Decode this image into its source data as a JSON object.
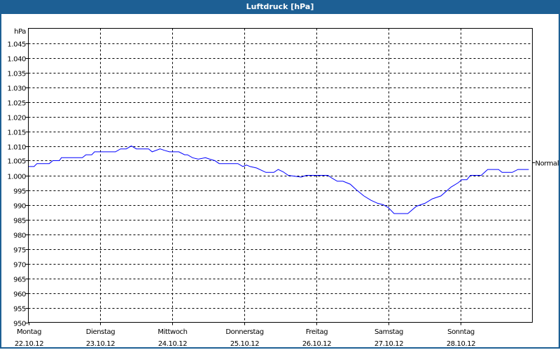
{
  "title": "Luftdruck [hPa]",
  "chart_data": {
    "type": "line",
    "title": "Luftdruck [hPa]",
    "ylabel": "hPa",
    "xlabel": "",
    "ylim": [
      950,
      1050
    ],
    "xlim": [
      0,
      7
    ],
    "yticks": [
      950,
      955,
      960,
      965,
      970,
      975,
      980,
      985,
      990,
      995,
      1000,
      1005,
      1010,
      1015,
      1020,
      1025,
      1030,
      1035,
      1040,
      1045
    ],
    "ytick_labels": [
      "950",
      "955",
      "960",
      "965",
      "970",
      "975",
      "980",
      "985",
      "990",
      "995",
      "1.000",
      "1.005",
      "1.010",
      "1.015",
      "1.020",
      "1.025",
      "1.030",
      "1.035",
      "1.040",
      "1.045"
    ],
    "xticks": [
      {
        "day": "Montag",
        "date": "22.10.12"
      },
      {
        "day": "Dienstag",
        "date": "23.10.12"
      },
      {
        "day": "Mittwoch",
        "date": "24.10.12"
      },
      {
        "day": "Donnerstag",
        "date": "25.10.12"
      },
      {
        "day": "Freitag",
        "date": "26.10.12"
      },
      {
        "day": "Samstag",
        "date": "27.10.12"
      },
      {
        "day": "Sonntag",
        "date": "28.10.12"
      }
    ],
    "grid": true,
    "reference": {
      "label": "Normal",
      "value": 1004.5
    },
    "series": [
      {
        "name": "Luftdruck",
        "color": "#0000ff",
        "points": [
          [
            0,
            1003
          ],
          [
            0.08,
            1003
          ],
          [
            0.12,
            1004
          ],
          [
            0.29,
            1004
          ],
          [
            0.34,
            1005
          ],
          [
            0.43,
            1005
          ],
          [
            0.46,
            1006
          ],
          [
            0.75,
            1006
          ],
          [
            0.8,
            1007
          ],
          [
            0.88,
            1007
          ],
          [
            0.92,
            1008
          ],
          [
            1.21,
            1008
          ],
          [
            1.28,
            1009
          ],
          [
            1.36,
            1009
          ],
          [
            1.43,
            1010
          ],
          [
            1.5,
            1009
          ],
          [
            1.67,
            1009
          ],
          [
            1.72,
            1008
          ],
          [
            1.83,
            1009
          ],
          [
            1.89,
            1008.5
          ],
          [
            1.96,
            1008
          ],
          [
            2.09,
            1008
          ],
          [
            2.17,
            1007
          ],
          [
            2.21,
            1007
          ],
          [
            2.28,
            1006
          ],
          [
            2.36,
            1005.5
          ],
          [
            2.46,
            1006
          ],
          [
            2.52,
            1005.5
          ],
          [
            2.59,
            1005
          ],
          [
            2.65,
            1004
          ],
          [
            2.91,
            1004
          ],
          [
            2.98,
            1003
          ],
          [
            3.03,
            1003.5
          ],
          [
            3.08,
            1003
          ],
          [
            3.17,
            1002.5
          ],
          [
            3.3,
            1001
          ],
          [
            3.41,
            1001
          ],
          [
            3.47,
            1002
          ],
          [
            3.54,
            1001.2
          ],
          [
            3.61,
            1000
          ],
          [
            3.79,
            999.4
          ],
          [
            3.86,
            1000
          ],
          [
            4.16,
            1000
          ],
          [
            4.22,
            999
          ],
          [
            4.29,
            998
          ],
          [
            4.37,
            998
          ],
          [
            4.47,
            997
          ],
          [
            4.56,
            995
          ],
          [
            4.66,
            993
          ],
          [
            4.76,
            991.5
          ],
          [
            4.85,
            990.5
          ],
          [
            4.93,
            990
          ],
          [
            5.0,
            989
          ],
          [
            5.08,
            987
          ],
          [
            5.27,
            987
          ],
          [
            5.39,
            989.5
          ],
          [
            5.51,
            990.5
          ],
          [
            5.61,
            992
          ],
          [
            5.73,
            993
          ],
          [
            5.87,
            996
          ],
          [
            5.97,
            997.5
          ],
          [
            6.02,
            998.5
          ],
          [
            6.09,
            998.5
          ],
          [
            6.14,
            1000
          ],
          [
            6.29,
            1000
          ],
          [
            6.38,
            1002
          ],
          [
            6.53,
            1002
          ],
          [
            6.58,
            1001
          ],
          [
            6.72,
            1001
          ],
          [
            6.8,
            1002
          ],
          [
            6.95,
            1002
          ]
        ]
      }
    ]
  }
}
